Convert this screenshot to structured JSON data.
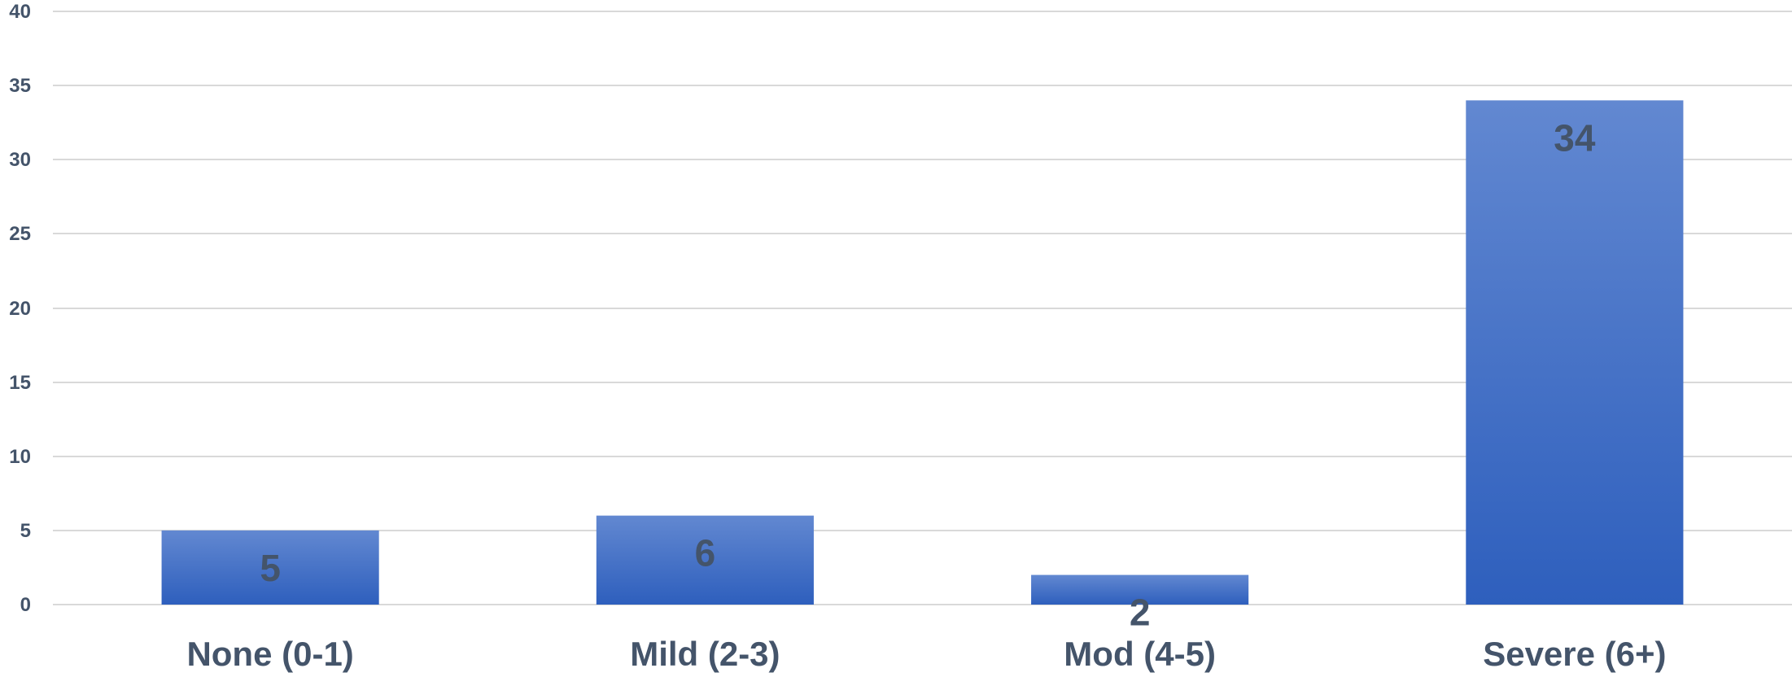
{
  "chart_data": {
    "type": "bar",
    "categories": [
      "None (0-1)",
      "Mild (2-3)",
      "Mod (4-5)",
      "Severe (6+)"
    ],
    "values": [
      5,
      6,
      2,
      34
    ],
    "data_labels": [
      "5",
      "6",
      "2",
      "34"
    ],
    "yticks": [
      "0",
      "5",
      "10",
      "15",
      "20",
      "25",
      "30",
      "35",
      "40"
    ],
    "ylim": [
      0,
      40
    ],
    "grid": true,
    "legend": false,
    "title": "",
    "xlabel": "",
    "ylabel": "",
    "bar_color_top": "#6288d1",
    "bar_color_bottom": "#2e5fbd",
    "label_color": "#44546a",
    "grid_color": "#d9d9d9"
  }
}
